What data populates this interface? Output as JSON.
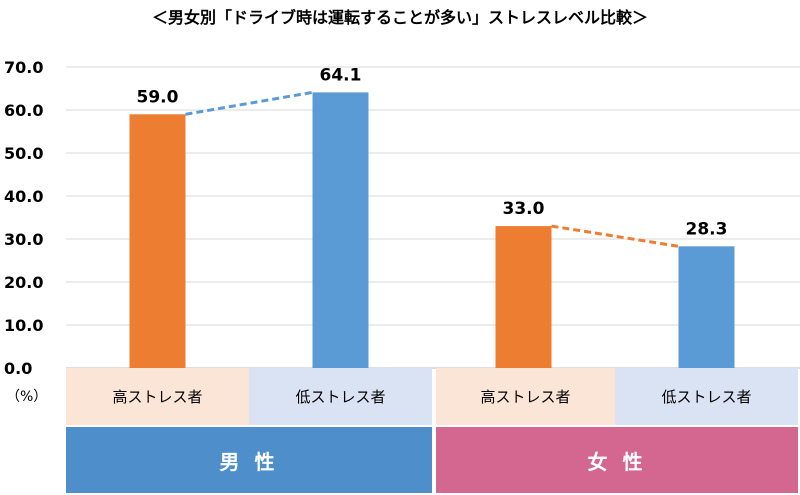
{
  "chart_data": {
    "type": "bar",
    "title": "＜男女別「ドライブ時は運転することが多い」ストレスレベル比較＞",
    "unit_label": "（%）",
    "ylim": [
      0,
      70
    ],
    "yticks": [
      "0.0",
      "10.0",
      "20.0",
      "30.0",
      "40.0",
      "50.0",
      "60.0",
      "70.0"
    ],
    "grid": true,
    "groups": [
      {
        "label": "男 性",
        "color": "#4e8fcb"
      },
      {
        "label": "女 性",
        "color": "#d46790"
      }
    ],
    "categories": [
      "高ストレス者",
      "低ストレス者",
      "高ストレス者",
      "低ストレス者"
    ],
    "values": [
      59.0,
      64.1,
      33.0,
      28.3
    ],
    "value_labels": [
      "59.0",
      "64.1",
      "33.0",
      "28.3"
    ],
    "bar_colors": [
      "#ed7d31",
      "#5b9bd5",
      "#ed7d31",
      "#5b9bd5"
    ],
    "category_backgrounds": [
      "#fbe5d6",
      "#dae3f3",
      "#fbe5d6",
      "#dae3f3"
    ],
    "connector_colors": [
      "#5b9bd5",
      "#ed7d31"
    ]
  }
}
